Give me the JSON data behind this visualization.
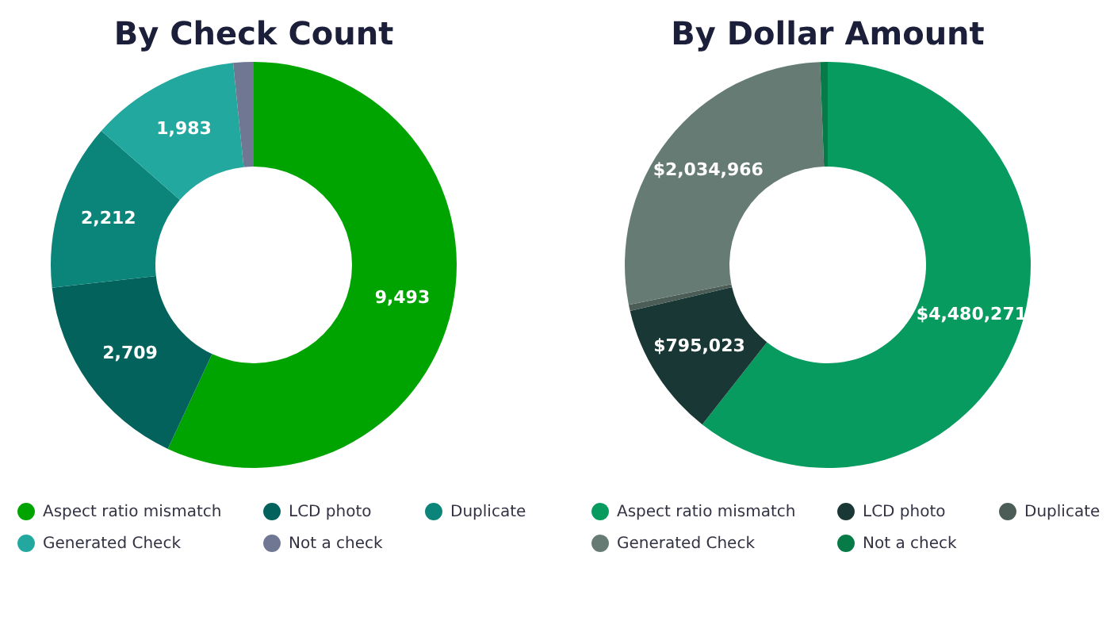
{
  "chart_data": [
    {
      "type": "donut",
      "title": "By Check Count",
      "categories": [
        "Aspect ratio mismatch",
        "LCD photo",
        "Duplicate",
        "Generated Check",
        "Not a check"
      ],
      "values": [
        9493,
        2709,
        2212,
        1983,
        270
      ],
      "value_labels": [
        "9,493",
        "2,709",
        "2,212",
        "1,983",
        null
      ],
      "colors": [
        "#00a400",
        "#03625b",
        "#0b847a",
        "#22a89f",
        "#707792"
      ],
      "legend": "bottom"
    },
    {
      "type": "donut",
      "title": "By Dollar Amount",
      "categories": [
        "Aspect ratio mismatch",
        "LCD photo",
        "Duplicate",
        "Generated Check",
        "Not a check"
      ],
      "values": [
        4480271,
        795023,
        37000,
        2034966,
        45000
      ],
      "value_labels": [
        "$4,480,271",
        "$795,023",
        null,
        "$2,034,966",
        null
      ],
      "colors": [
        "#079b5f",
        "#193835",
        "#4c5d57",
        "#667b74",
        "#067a47"
      ],
      "legend": "bottom"
    }
  ]
}
